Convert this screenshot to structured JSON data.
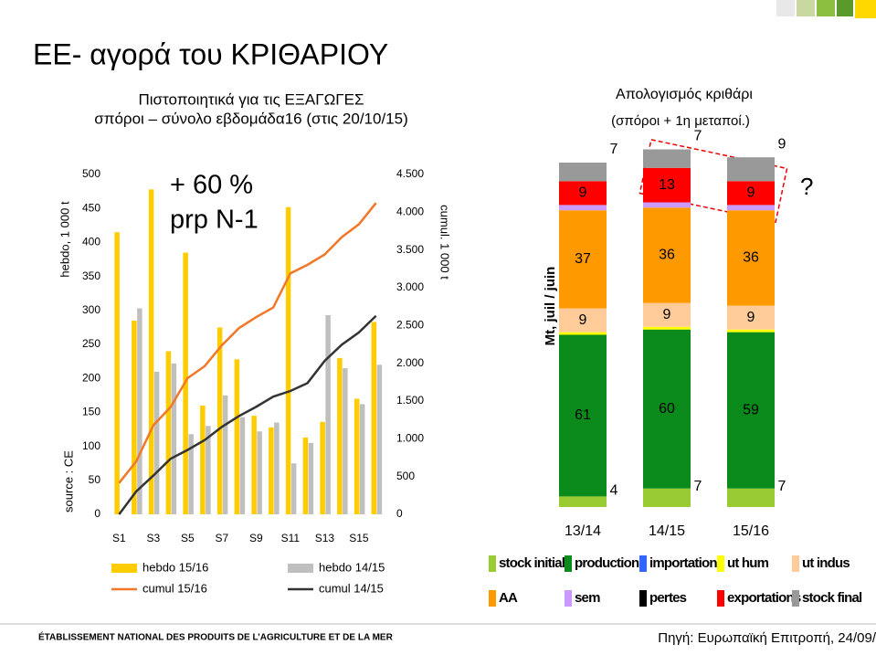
{
  "slide": {
    "title": "ΕΕ- αγορά του ΚΡΙΘΑΡΙΟΥ",
    "footer": "ÉTABLISSEMENT NATIONAL DES PRODUITS DE L’AGRICULTURE ET DE LA MER",
    "source": "Πηγή: Ευρωπαϊκή Επιτροπή, 24/09/"
  },
  "chart_data": [
    {
      "type": "combo",
      "title": "Πιστοποιητικά για τις ΕΞΑΓΩΓΕΣ",
      "subtitle": "σπόροι – σύνολο εβδομάδα16 (στις 20/10/15)",
      "annotations": [
        "+ 60 %",
        "prp N-1"
      ],
      "y_label": "hebdo, 1 000 t",
      "y2_label": "cumul. 1 000 t",
      "source_label": "source : CE",
      "categories": [
        "S1",
        null,
        "S3",
        null,
        "S5",
        null,
        "S7",
        null,
        "S9",
        null,
        "S11",
        null,
        "S13",
        null,
        "S15",
        null
      ],
      "series": [
        {
          "name": "hebdo 15/16",
          "kind": "bar",
          "color": "#ffcc00",
          "values": [
            415,
            285,
            478,
            240,
            385,
            160,
            275,
            228,
            145,
            128,
            452,
            113,
            136,
            230,
            170,
            283
          ]
        },
        {
          "name": "hebdo 14/15",
          "kind": "bar",
          "color": "#bfbfbf",
          "values": [
            null,
            303,
            210,
            222,
            118,
            130,
            175,
            143,
            122,
            135,
            75,
            105,
            293,
            215,
            162,
            220
          ]
        },
        {
          "name": "cumul 15/16",
          "kind": "line",
          "axis": "y2",
          "color": "#f07828",
          "values": [
            415,
            700,
            1178,
            1418,
            1803,
            1963,
            2238,
            2466,
            2611,
            2739,
            3191,
            3304,
            3440,
            3670,
            3840,
            4123
          ]
        },
        {
          "name": "cumul 14/15",
          "kind": "line",
          "axis": "y2",
          "color": "#333333",
          "values": [
            0,
            303,
            513,
            735,
            853,
            983,
            1158,
            1301,
            1423,
            1558,
            1633,
            1738,
            2031,
            2246,
            2408,
            2628
          ]
        }
      ],
      "ylim": [
        0,
        500
      ],
      "yticks": [
        0,
        50,
        100,
        150,
        200,
        250,
        300,
        350,
        400,
        450,
        500
      ],
      "y2lim": [
        0,
        4500
      ],
      "y2ticks": [
        0,
        500,
        {
          "value": 1000,
          "label": "1.000"
        },
        {
          "value": 1500,
          "label": "1.500"
        },
        {
          "value": 2000,
          "label": "2.000"
        },
        {
          "value": 2500,
          "label": "2.500"
        },
        {
          "value": 3000,
          "label": "3.000"
        },
        {
          "value": 3500,
          "label": "3.500"
        },
        {
          "value": 4000,
          "label": "4.000"
        },
        {
          "value": 4500,
          "label": "4.500"
        }
      ],
      "grid": false
    },
    {
      "type": "stacked",
      "title": "Απολογισμός κριθάρι",
      "subtitle": "(σπόροι + 1η μεταποί.)",
      "y_label": "Mt, juil / juin",
      "annotation": "?",
      "categories": [
        "13/14",
        "14/15",
        "15/16"
      ],
      "series": [
        {
          "name": "stock initial",
          "color": "#99cc33",
          "show_labels": true,
          "values": [
            4,
            7,
            7
          ]
        },
        {
          "name": "production",
          "color": "#0a8a1a",
          "show_labels": true,
          "values": [
            61,
            60,
            59
          ]
        },
        {
          "name": "importations",
          "color": "#3366ff",
          "show_labels": false,
          "values": [
            0,
            0,
            0
          ]
        },
        {
          "name": "ut hum",
          "color": "#ffff00",
          "show_labels": false,
          "values": [
            1,
            1,
            1
          ]
        },
        {
          "name": "ut indus",
          "color": "#ffcc99",
          "show_labels": true,
          "values": [
            9,
            9,
            9
          ]
        },
        {
          "name": "AA",
          "color": "#ff9900",
          "show_labels": true,
          "values": [
            37,
            36,
            36
          ]
        },
        {
          "name": "sem",
          "color": "#cc99ff",
          "show_labels": false,
          "values": [
            2,
            2,
            2
          ]
        },
        {
          "name": "pertes",
          "color": "#000000",
          "show_labels": false,
          "values": [
            0,
            0,
            0
          ]
        },
        {
          "name": "exportations",
          "color": "#ff0000",
          "show_labels": true,
          "values": [
            9,
            13,
            9
          ]
        },
        {
          "name": "stock final",
          "color": "#999999",
          "show_labels": true,
          "values": [
            7,
            7,
            9
          ]
        }
      ]
    }
  ]
}
